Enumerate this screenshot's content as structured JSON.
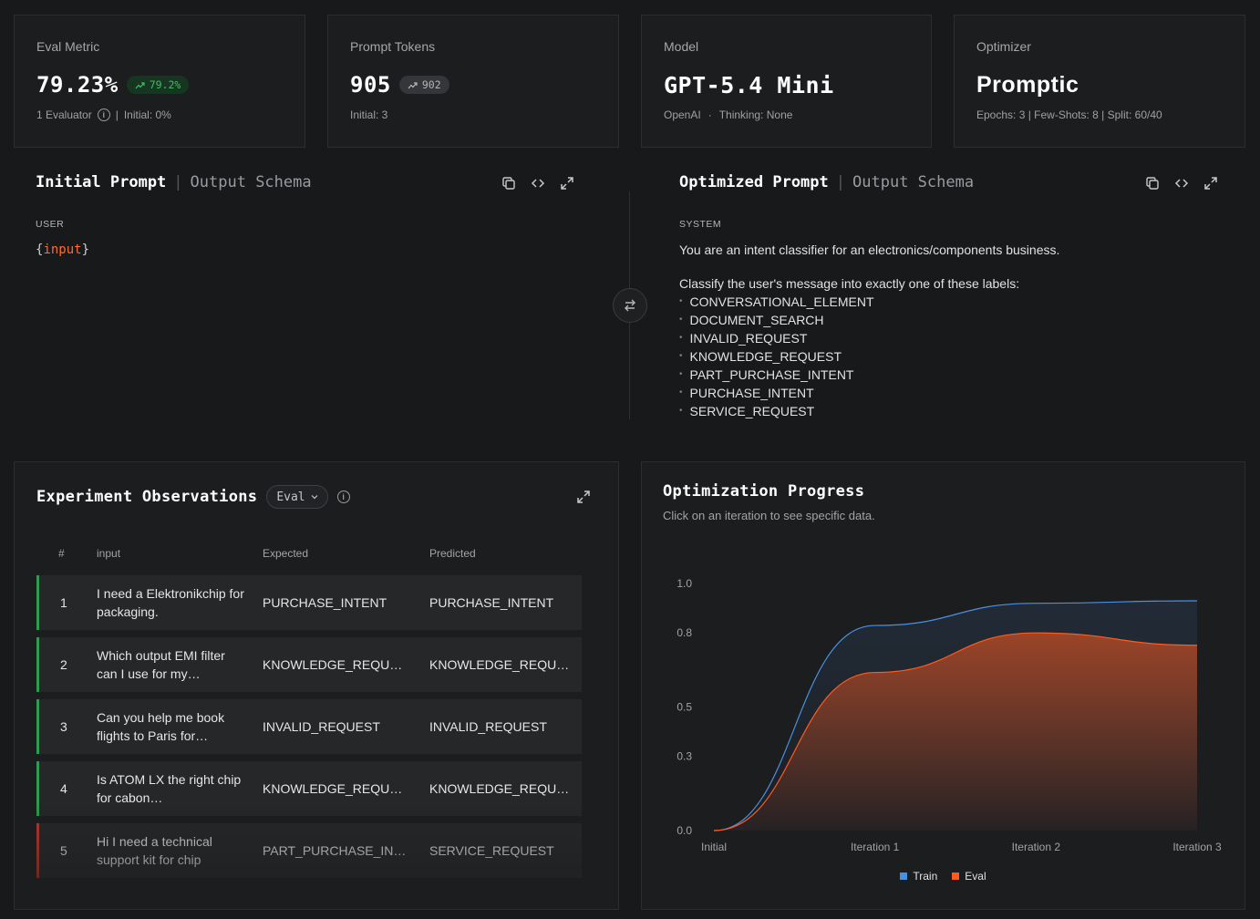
{
  "metrics": {
    "eval_metric": {
      "title": "Eval Metric",
      "value": "79.23%",
      "badge": "79.2%",
      "evaluators": "1 Evaluator",
      "initial": "Initial: 0%"
    },
    "prompt_tokens": {
      "title": "Prompt Tokens",
      "value": "905",
      "badge": "902",
      "initial": "Initial: 3"
    },
    "model": {
      "title": "Model",
      "value": "GPT-5.4 Mini",
      "provider": "OpenAI",
      "thinking": "Thinking: None"
    },
    "optimizer": {
      "title": "Optimizer",
      "value": "Promptic",
      "details": "Epochs: 3 | Few-Shots: 8 | Split: 60/40"
    }
  },
  "initial_prompt": {
    "tab_active": "Initial Prompt",
    "tab_inactive": "Output Schema",
    "role": "USER",
    "var_open": "{",
    "var_name": "input",
    "var_close": "}"
  },
  "optimized_prompt": {
    "tab_active": "Optimized Prompt",
    "tab_inactive": "Output Schema",
    "role": "SYSTEM",
    "line1": "You are an intent classifier for an electronics/components business.",
    "line2": "Classify the user's message into exactly one of these labels:",
    "labels": [
      "CONVERSATIONAL_ELEMENT",
      "DOCUMENT_SEARCH",
      "INVALID_REQUEST",
      "KNOWLEDGE_REQUEST",
      "PART_PURCHASE_INTENT",
      "PURCHASE_INTENT",
      "SERVICE_REQUEST"
    ]
  },
  "observations": {
    "title": "Experiment Observations",
    "filter": "Eval",
    "columns": {
      "num": "#",
      "input": "input",
      "expected": "Expected",
      "predicted": "Predicted"
    },
    "rows": [
      {
        "num": "1",
        "input": "I need a Elektronikchip for packaging.",
        "expected": "PURCHASE_INTENT",
        "predicted": "PURCHASE_INTENT",
        "status": "correct"
      },
      {
        "num": "2",
        "input": "Which output EMI filter can I use for my…",
        "expected": "KNOWLEDGE_REQU…",
        "predicted": "KNOWLEDGE_REQU…",
        "status": "correct"
      },
      {
        "num": "3",
        "input": "Can you help me book flights to Paris for…",
        "expected": "INVALID_REQUEST",
        "predicted": "INVALID_REQUEST",
        "status": "correct"
      },
      {
        "num": "4",
        "input": "Is ATOM LX the right chip for cabon…",
        "expected": "KNOWLEDGE_REQU…",
        "predicted": "KNOWLEDGE_REQU…",
        "status": "correct"
      },
      {
        "num": "5",
        "input": "Hi I need a technical support kit for chip",
        "expected": "PART_PURCHASE_IN…",
        "predicted": "SERVICE_REQUEST",
        "status": "incorrect"
      }
    ],
    "status_colors": {
      "correct": "#2e9b4e",
      "incorrect": "#c0392b"
    }
  },
  "progress": {
    "title": "Optimization Progress",
    "subtitle": "Click on an iteration to see specific data."
  },
  "chart_data": {
    "type": "area",
    "categories": [
      "Initial",
      "Iteration 1",
      "Iteration 2",
      "Iteration 3"
    ],
    "y_ticks": [
      "0.0",
      "0.3",
      "0.5",
      "0.8",
      "1.0"
    ],
    "ylim": [
      0,
      1
    ],
    "series": [
      {
        "name": "Train",
        "values": [
          0.0,
          0.83,
          0.92,
          0.93
        ],
        "color": "#4a90e2"
      },
      {
        "name": "Eval",
        "values": [
          0.0,
          0.64,
          0.8,
          0.75
        ],
        "color": "#ff5a1f"
      }
    ],
    "legend": "bottom",
    "grid": false
  }
}
